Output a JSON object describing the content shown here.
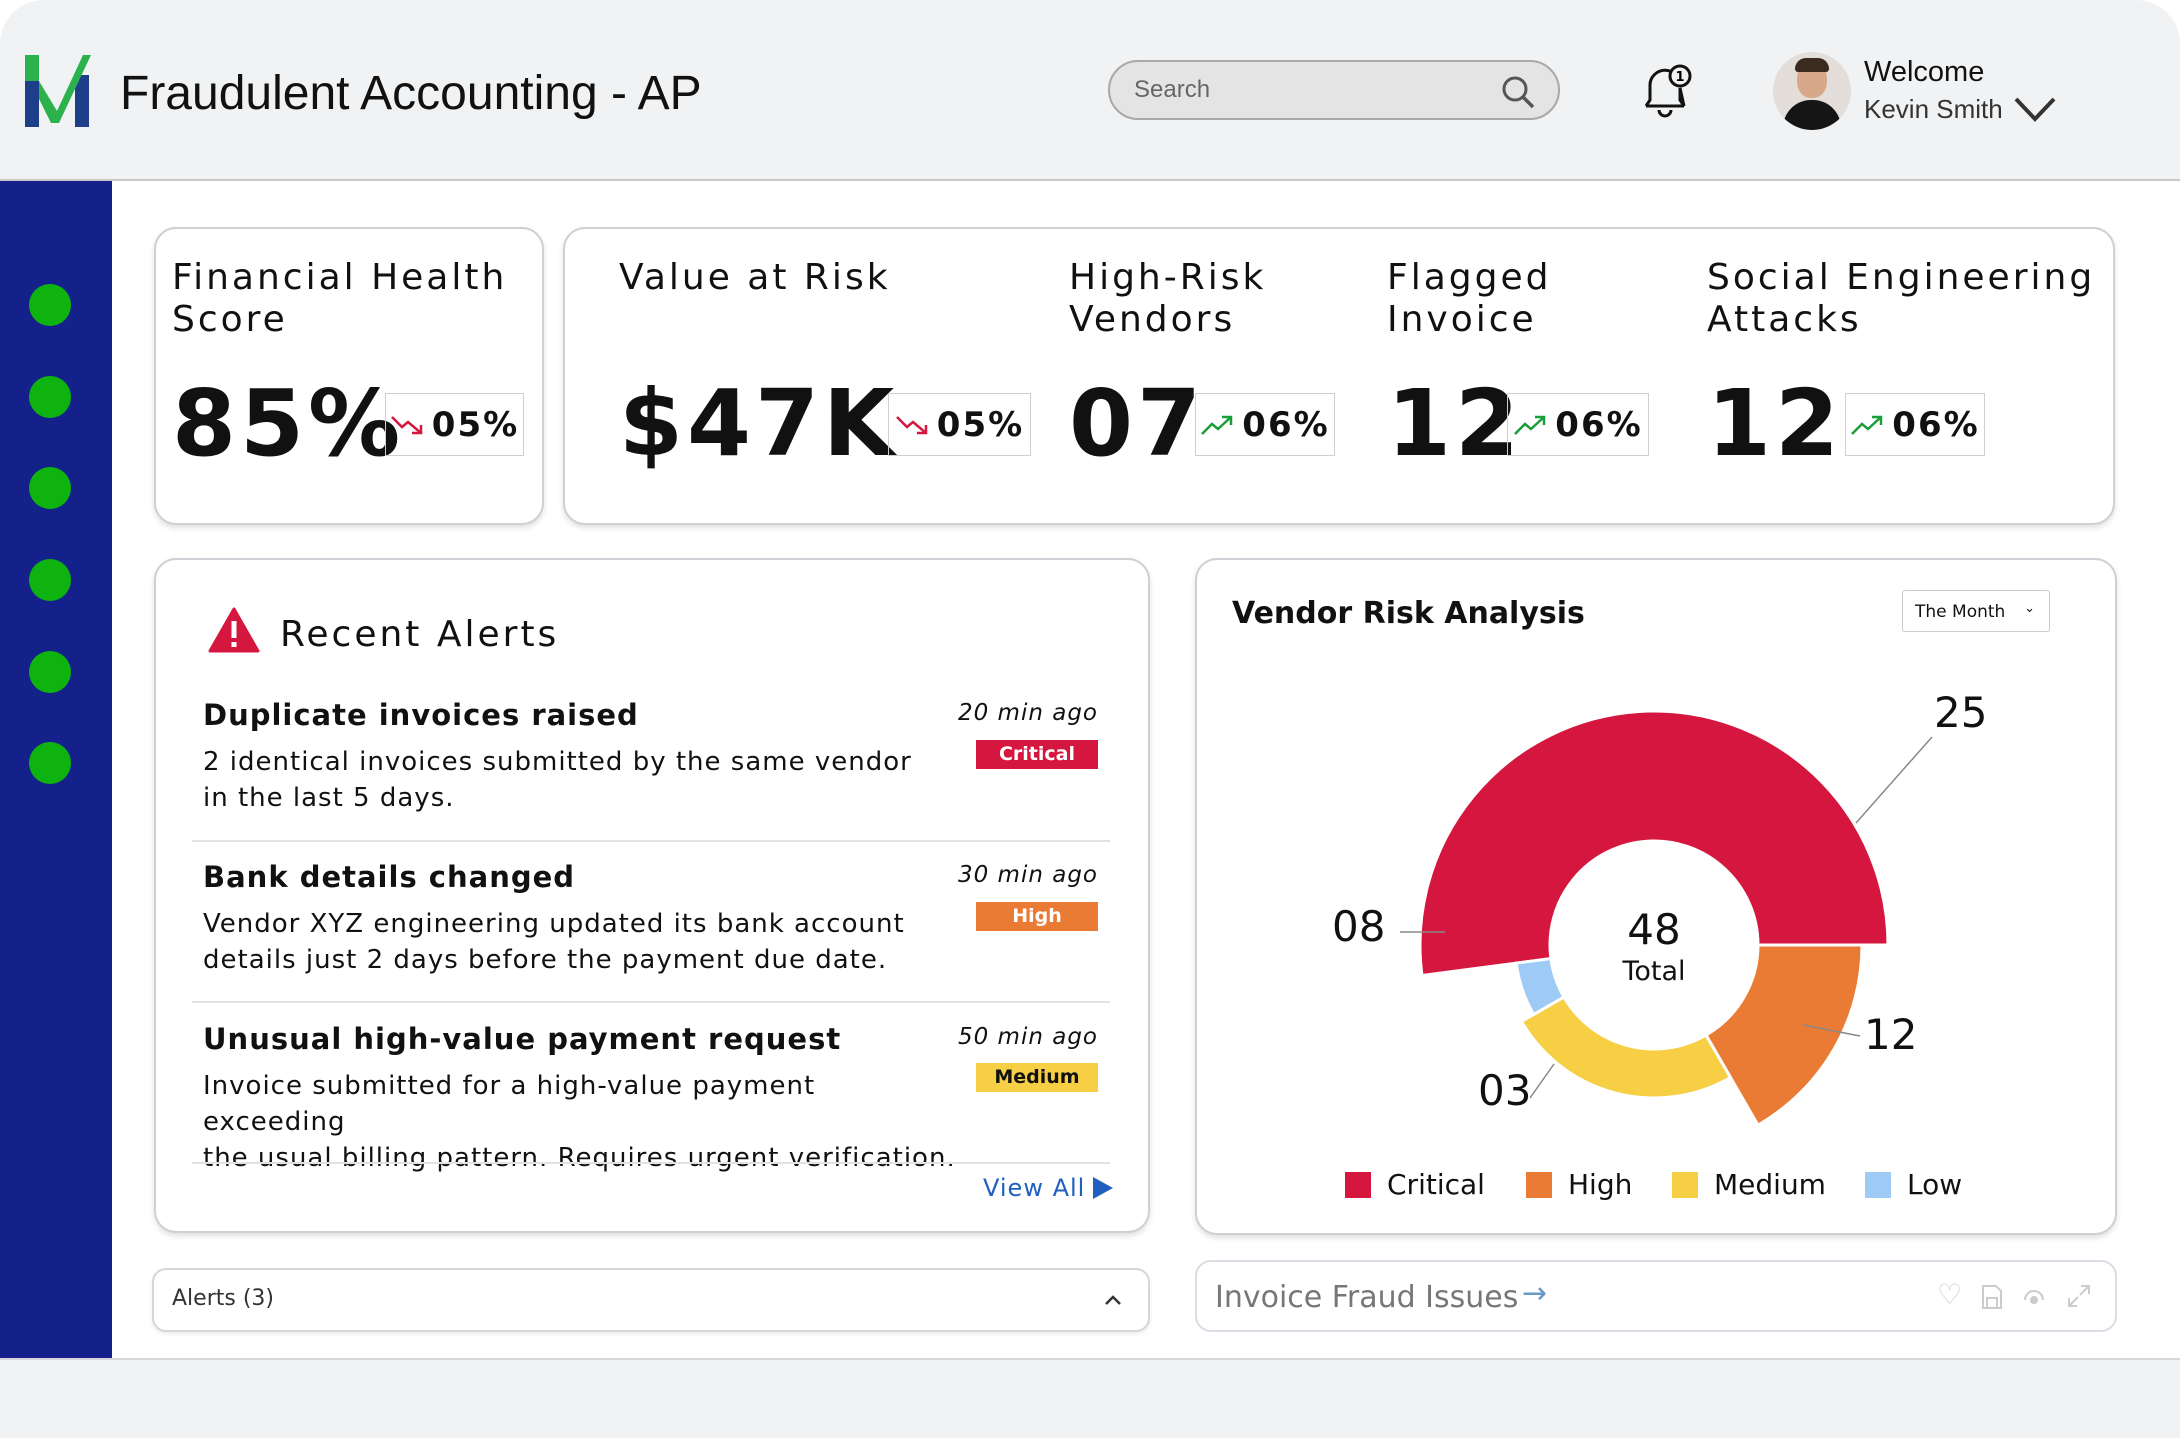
{
  "header": {
    "title": "Fraudulent Accounting - AP",
    "search_placeholder": "Search",
    "welcome": "Welcome",
    "user_name": "Kevin Smith",
    "notification_count": "1"
  },
  "sidebar": {
    "items": [
      "nav-1",
      "nav-2",
      "nav-3",
      "nav-4",
      "nav-5",
      "nav-6"
    ]
  },
  "stats": [
    {
      "label_l1": "Financial Health",
      "label_l2": "Score",
      "value": "85%",
      "change": "05%",
      "trend": "down"
    },
    {
      "label_l1": "Value at Risk",
      "label_l2": "",
      "value": "$47K",
      "change": "05%",
      "trend": "down"
    },
    {
      "label_l1": "High-Risk",
      "label_l2": "Vendors",
      "value": "07",
      "change": "06%",
      "trend": "up"
    },
    {
      "label_l1": "Flagged",
      "label_l2": "Invoice",
      "value": "12",
      "change": "06%",
      "trend": "up"
    },
    {
      "label_l1": "Social Engineering",
      "label_l2": "Attacks",
      "value": "12",
      "change": "06%",
      "trend": "up"
    }
  ],
  "alerts": {
    "title": "Recent Alerts",
    "view_all": "View All",
    "items": [
      {
        "title": "Duplicate invoices raised",
        "desc1": "2 identical invoices submitted by the same vendor",
        "desc2": "in the last 5 days.",
        "time": "20 min ago",
        "severity": "Critical",
        "color": "#d5173f"
      },
      {
        "title": "Bank details changed",
        "desc1": "Vendor XYZ engineering updated its bank account",
        "desc2": "details just 2 days before the payment due date.",
        "time": "30 min ago",
        "severity": "High",
        "color": "#ea7b35"
      },
      {
        "title": "Unusual high-value payment request",
        "desc1": "Invoice submitted for a high-value payment exceeding",
        "desc2": "the usual billing pattern. Requires urgent verification.",
        "time": "50 min ago",
        "severity": "Medium",
        "color": "#f7cf45"
      }
    ]
  },
  "vendor_risk": {
    "title": "Vendor Risk Analysis",
    "period": "The Month",
    "total": "48",
    "total_label": "Total",
    "chart_data": {
      "type": "pie",
      "categories": [
        "Critical",
        "High",
        "Medium",
        "Low"
      ],
      "values": [
        25,
        8,
        12,
        3
      ],
      "labels": [
        "25",
        "08",
        "12",
        "03"
      ],
      "colors": [
        "#d5173f",
        "#ea7b35",
        "#f7cf45",
        "#9ecbf5"
      ],
      "total": 48,
      "legend": "bottom"
    }
  },
  "bottom": {
    "alerts_bar": "Alerts (3)",
    "invoice_fraud": "Invoice Fraud Issues"
  }
}
